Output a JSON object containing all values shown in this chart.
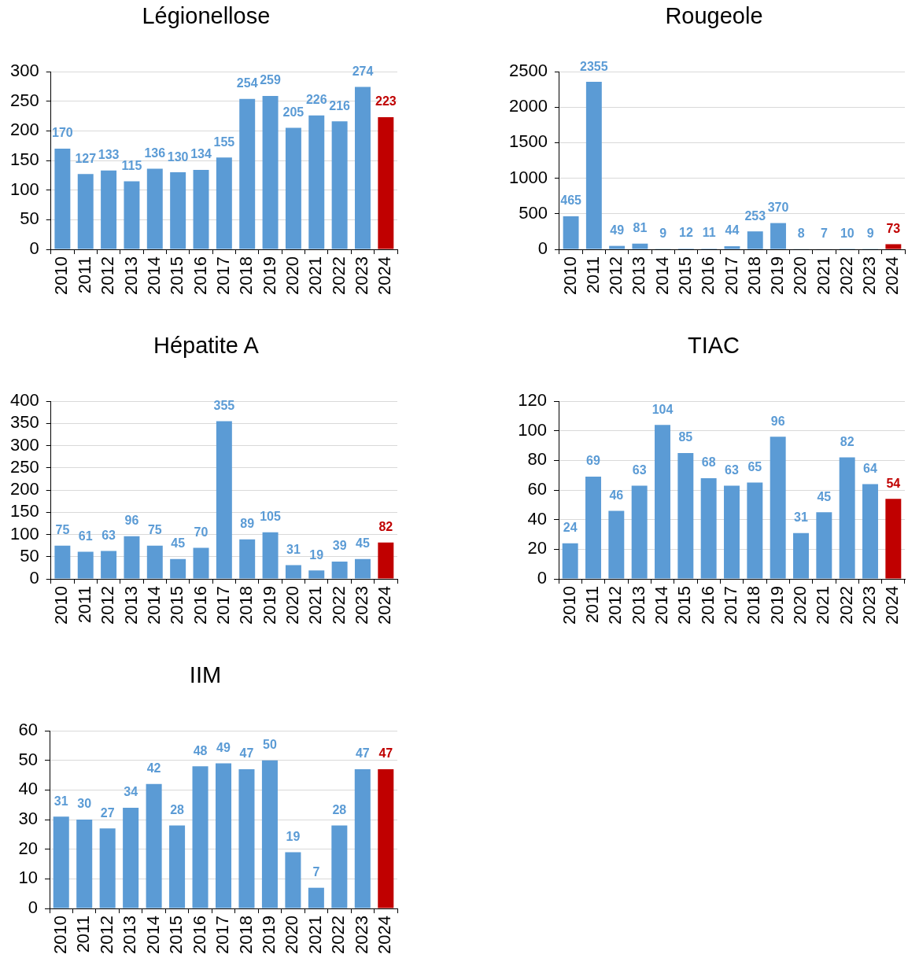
{
  "chart_data": [
    {
      "type": "bar",
      "title": "Légionellose",
      "categories": [
        "2010",
        "2011",
        "2012",
        "2013",
        "2014",
        "2015",
        "2016",
        "2017",
        "2018",
        "2019",
        "2020",
        "2021",
        "2022",
        "2023",
        "2024"
      ],
      "values": [
        170,
        127,
        133,
        115,
        136,
        130,
        134,
        155,
        254,
        259,
        205,
        226,
        216,
        274,
        223
      ],
      "colors": [
        "#5b9bd5",
        "#5b9bd5",
        "#5b9bd5",
        "#5b9bd5",
        "#5b9bd5",
        "#5b9bd5",
        "#5b9bd5",
        "#5b9bd5",
        "#5b9bd5",
        "#5b9bd5",
        "#5b9bd5",
        "#5b9bd5",
        "#5b9bd5",
        "#5b9bd5",
        "#c00000"
      ],
      "ylim": [
        0,
        300
      ],
      "yticks": [
        0,
        50,
        100,
        150,
        200,
        250,
        300
      ],
      "grid": "y",
      "data_labels": true
    },
    {
      "type": "bar",
      "title": "Rougeole",
      "categories": [
        "2010",
        "2011",
        "2012",
        "2013",
        "2014",
        "2015",
        "2016",
        "2017",
        "2018",
        "2019",
        "2020",
        "2021",
        "2022",
        "2023",
        "2024"
      ],
      "values": [
        465,
        2355,
        49,
        81,
        9,
        12,
        11,
        44,
        253,
        370,
        8,
        7,
        10,
        9,
        73
      ],
      "colors": [
        "#5b9bd5",
        "#5b9bd5",
        "#5b9bd5",
        "#5b9bd5",
        "#5b9bd5",
        "#5b9bd5",
        "#5b9bd5",
        "#5b9bd5",
        "#5b9bd5",
        "#5b9bd5",
        "#5b9bd5",
        "#5b9bd5",
        "#5b9bd5",
        "#5b9bd5",
        "#c00000"
      ],
      "ylim": [
        0,
        2500
      ],
      "yticks": [
        0,
        500,
        1000,
        1500,
        2000,
        2500
      ],
      "grid": "y",
      "data_labels": true
    },
    {
      "type": "bar",
      "title": "Hépatite A",
      "categories": [
        "2010",
        "2011",
        "2012",
        "2013",
        "2014",
        "2015",
        "2016",
        "2017",
        "2018",
        "2019",
        "2020",
        "2021",
        "2022",
        "2023",
        "2024"
      ],
      "values": [
        75,
        61,
        63,
        96,
        75,
        45,
        70,
        355,
        89,
        105,
        31,
        19,
        39,
        45,
        82
      ],
      "colors": [
        "#5b9bd5",
        "#5b9bd5",
        "#5b9bd5",
        "#5b9bd5",
        "#5b9bd5",
        "#5b9bd5",
        "#5b9bd5",
        "#5b9bd5",
        "#5b9bd5",
        "#5b9bd5",
        "#5b9bd5",
        "#5b9bd5",
        "#5b9bd5",
        "#5b9bd5",
        "#c00000"
      ],
      "ylim": [
        0,
        400
      ],
      "yticks": [
        0,
        50,
        100,
        150,
        200,
        250,
        300,
        350,
        400
      ],
      "grid": "y",
      "data_labels": true
    },
    {
      "type": "bar",
      "title": "TIAC",
      "categories": [
        "2010",
        "2011",
        "2012",
        "2013",
        "2014",
        "2015",
        "2016",
        "2017",
        "2018",
        "2019",
        "2020",
        "2021",
        "2022",
        "2023",
        "2024"
      ],
      "values": [
        24,
        69,
        46,
        63,
        104,
        85,
        68,
        63,
        65,
        96,
        31,
        45,
        82,
        64,
        54
      ],
      "colors": [
        "#5b9bd5",
        "#5b9bd5",
        "#5b9bd5",
        "#5b9bd5",
        "#5b9bd5",
        "#5b9bd5",
        "#5b9bd5",
        "#5b9bd5",
        "#5b9bd5",
        "#5b9bd5",
        "#5b9bd5",
        "#5b9bd5",
        "#5b9bd5",
        "#5b9bd5",
        "#c00000"
      ],
      "ylim": [
        0,
        120
      ],
      "yticks": [
        0,
        20,
        40,
        60,
        80,
        100,
        120
      ],
      "grid": "y",
      "data_labels": true
    },
    {
      "type": "bar",
      "title": "IIM",
      "categories": [
        "2010",
        "2011",
        "2012",
        "2013",
        "2014",
        "2015",
        "2016",
        "2017",
        "2018",
        "2019",
        "2020",
        "2021",
        "2022",
        "2023",
        "2024"
      ],
      "values": [
        31,
        30,
        27,
        34,
        42,
        28,
        48,
        49,
        47,
        50,
        19,
        7,
        28,
        47,
        47
      ],
      "colors": [
        "#5b9bd5",
        "#5b9bd5",
        "#5b9bd5",
        "#5b9bd5",
        "#5b9bd5",
        "#5b9bd5",
        "#5b9bd5",
        "#5b9bd5",
        "#5b9bd5",
        "#5b9bd5",
        "#5b9bd5",
        "#5b9bd5",
        "#5b9bd5",
        "#5b9bd5",
        "#c00000"
      ],
      "ylim": [
        0,
        60
      ],
      "yticks": [
        0,
        10,
        20,
        30,
        40,
        50,
        60
      ],
      "grid": "y",
      "data_labels": true
    }
  ]
}
